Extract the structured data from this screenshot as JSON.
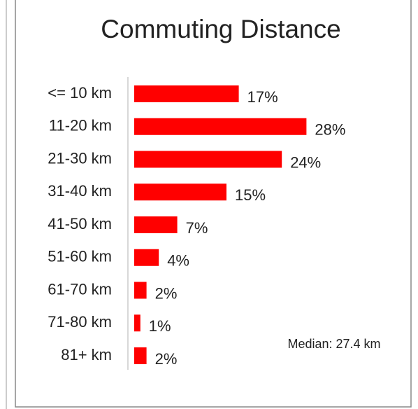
{
  "chart_data": {
    "type": "bar",
    "orientation": "horizontal",
    "title": "Commuting Distance",
    "categories": [
      "<= 10 km",
      "11-20 km",
      "21-30 km",
      "31-40 km",
      "41-50 km",
      "51-60 km",
      "61-70 km",
      "71-80 km",
      "81+ km"
    ],
    "values": [
      17,
      28,
      24,
      15,
      7,
      4,
      2,
      1,
      2
    ],
    "value_labels": [
      "17%",
      "28%",
      "24%",
      "15%",
      "7%",
      "4%",
      "2%",
      "1%",
      "2%"
    ],
    "color": "#ff0000",
    "annotation": "Median: 27.4 km"
  }
}
